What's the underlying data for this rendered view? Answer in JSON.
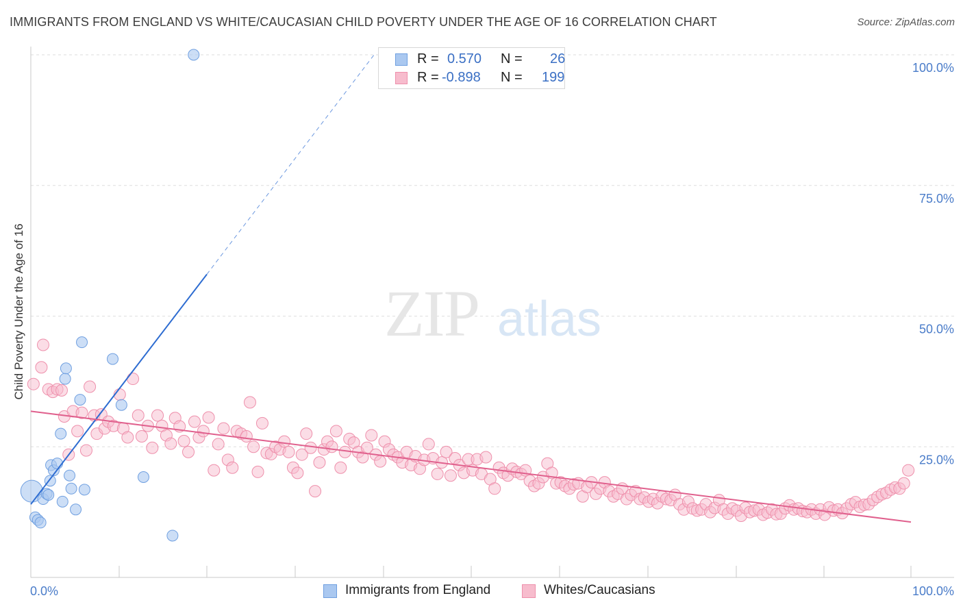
{
  "title": "IMMIGRANTS FROM ENGLAND VS WHITE/CAUCASIAN CHILD POVERTY UNDER THE AGE OF 16 CORRELATION CHART",
  "source": "Source: ZipAtlas.com",
  "watermark": {
    "zip": "ZIP",
    "atlas": "atlas"
  },
  "colors": {
    "blue_fill": "#aac8f0",
    "blue_stroke": "#6f9fe0",
    "blue_line": "#2d6cd1",
    "pink_fill": "#f7bccd",
    "pink_stroke": "#ee8fab",
    "pink_line": "#e0608d",
    "grid": "#dedede",
    "tick_label": "#4a7cc9"
  },
  "legend": {
    "rows": [
      {
        "r_label": "R =",
        "r_value": "0.570",
        "n_label": "N =",
        "n_value": "26"
      },
      {
        "r_label": "R =",
        "r_value": "-0.898",
        "n_label": "N =",
        "n_value": "199"
      }
    ]
  },
  "bottom_legend": [
    "Immigrants from England",
    "Whites/Caucasians"
  ],
  "chart_data": {
    "type": "scatter",
    "title": "IMMIGRANTS FROM ENGLAND VS WHITE/CAUCASIAN CHILD POVERTY UNDER THE AGE OF 16 CORRELATION CHART",
    "xlabel": "",
    "ylabel": "Child Poverty Under the Age of 16",
    "xlim": [
      0,
      100
    ],
    "ylim": [
      0,
      100
    ],
    "x_tick_labels": [
      "0.0%",
      "100.0%"
    ],
    "y_tick_labels": [
      "25.0%",
      "50.0%",
      "75.0%",
      "100.0%"
    ],
    "y_ticks": [
      25,
      50,
      75,
      100
    ],
    "grid": true,
    "legend_position": "top-center",
    "series": [
      {
        "name": "Immigrants from England",
        "R": 0.57,
        "N": 26,
        "trend": {
          "x": [
            0,
            20
          ],
          "y": [
            14.0,
            58.0
          ],
          "dashed_to": [
            39,
            100
          ]
        },
        "points": [
          [
            0.1,
            16.5
          ],
          [
            0.5,
            11.5
          ],
          [
            0.8,
            11.0
          ],
          [
            1.1,
            10.5
          ],
          [
            1.4,
            15.0
          ],
          [
            1.8,
            16.0
          ],
          [
            2.0,
            15.8
          ],
          [
            2.2,
            18.5
          ],
          [
            2.3,
            21.5
          ],
          [
            2.6,
            20.5
          ],
          [
            3.0,
            21.8
          ],
          [
            3.4,
            27.5
          ],
          [
            3.6,
            14.5
          ],
          [
            3.9,
            38.0
          ],
          [
            4.0,
            40.0
          ],
          [
            4.4,
            19.5
          ],
          [
            4.6,
            17.0
          ],
          [
            5.1,
            13.0
          ],
          [
            5.6,
            34.0
          ],
          [
            5.8,
            45.0
          ],
          [
            6.1,
            16.8
          ],
          [
            9.3,
            41.8
          ],
          [
            10.3,
            33.0
          ],
          [
            12.8,
            19.2
          ],
          [
            16.1,
            8.0
          ],
          [
            18.5,
            100.0
          ]
        ]
      },
      {
        "name": "Whites/Caucasians",
        "R": -0.898,
        "N": 199,
        "trend": {
          "x": [
            0,
            100
          ],
          "y": [
            31.8,
            10.6
          ]
        },
        "points": [
          [
            0.3,
            37.0
          ],
          [
            1.2,
            40.2
          ],
          [
            1.4,
            44.5
          ],
          [
            2.0,
            36.0
          ],
          [
            2.5,
            35.5
          ],
          [
            3.0,
            36.0
          ],
          [
            3.5,
            35.8
          ],
          [
            3.8,
            30.8
          ],
          [
            4.3,
            23.5
          ],
          [
            4.8,
            31.8
          ],
          [
            5.3,
            28.0
          ],
          [
            5.8,
            31.5
          ],
          [
            6.3,
            24.3
          ],
          [
            6.7,
            36.5
          ],
          [
            7.2,
            31.0
          ],
          [
            7.5,
            27.5
          ],
          [
            8.0,
            31.2
          ],
          [
            8.4,
            28.5
          ],
          [
            8.8,
            29.8
          ],
          [
            9.4,
            29.0
          ],
          [
            10.1,
            35.0
          ],
          [
            10.5,
            28.5
          ],
          [
            11.0,
            26.8
          ],
          [
            11.6,
            38.0
          ],
          [
            12.2,
            31.0
          ],
          [
            12.6,
            27.0
          ],
          [
            13.3,
            29.0
          ],
          [
            13.8,
            24.8
          ],
          [
            14.4,
            31.0
          ],
          [
            14.9,
            29.0
          ],
          [
            15.4,
            27.2
          ],
          [
            15.9,
            25.6
          ],
          [
            16.4,
            30.5
          ],
          [
            16.9,
            28.9
          ],
          [
            17.4,
            26.1
          ],
          [
            17.9,
            24.0
          ],
          [
            18.6,
            29.8
          ],
          [
            19.1,
            26.8
          ],
          [
            19.6,
            28.0
          ],
          [
            20.2,
            30.6
          ],
          [
            20.8,
            20.5
          ],
          [
            21.3,
            25.5
          ],
          [
            21.9,
            28.5
          ],
          [
            22.4,
            22.5
          ],
          [
            22.9,
            21.0
          ],
          [
            23.4,
            28.0
          ],
          [
            23.9,
            27.5
          ],
          [
            24.5,
            27.0
          ],
          [
            24.9,
            33.5
          ],
          [
            25.3,
            25.0
          ],
          [
            25.8,
            20.2
          ],
          [
            26.3,
            29.5
          ],
          [
            26.8,
            23.8
          ],
          [
            27.3,
            23.6
          ],
          [
            27.8,
            25.0
          ],
          [
            28.3,
            24.5
          ],
          [
            28.8,
            26.0
          ],
          [
            29.3,
            24.0
          ],
          [
            29.8,
            21.0
          ],
          [
            30.3,
            20.0
          ],
          [
            30.8,
            23.5
          ],
          [
            31.3,
            27.5
          ],
          [
            31.8,
            24.8
          ],
          [
            32.3,
            16.5
          ],
          [
            32.8,
            22.0
          ],
          [
            33.3,
            24.5
          ],
          [
            33.7,
            26.0
          ],
          [
            34.2,
            25.0
          ],
          [
            34.7,
            28.0
          ],
          [
            35.2,
            21.0
          ],
          [
            35.7,
            24.0
          ],
          [
            36.2,
            26.5
          ],
          [
            36.7,
            25.8
          ],
          [
            37.2,
            24.0
          ],
          [
            37.7,
            23.0
          ],
          [
            38.2,
            24.8
          ],
          [
            38.7,
            27.2
          ],
          [
            39.2,
            23.5
          ],
          [
            39.7,
            22.2
          ],
          [
            40.2,
            26.0
          ],
          [
            40.7,
            24.5
          ],
          [
            41.2,
            23.5
          ],
          [
            41.7,
            23.0
          ],
          [
            42.2,
            22.0
          ],
          [
            42.7,
            24.0
          ],
          [
            43.2,
            21.5
          ],
          [
            43.7,
            23.2
          ],
          [
            44.2,
            20.8
          ],
          [
            44.7,
            22.5
          ],
          [
            45.2,
            25.5
          ],
          [
            45.7,
            22.8
          ],
          [
            46.2,
            19.8
          ],
          [
            46.7,
            22.0
          ],
          [
            47.2,
            24.0
          ],
          [
            47.7,
            19.5
          ],
          [
            48.2,
            22.8
          ],
          [
            48.7,
            21.5
          ],
          [
            49.2,
            20.0
          ],
          [
            49.7,
            22.6
          ],
          [
            50.2,
            20.5
          ],
          [
            50.7,
            22.6
          ],
          [
            51.2,
            19.8
          ],
          [
            51.7,
            23.0
          ],
          [
            52.2,
            18.8
          ],
          [
            52.7,
            17.0
          ],
          [
            53.2,
            21.0
          ],
          [
            53.7,
            20.0
          ],
          [
            54.2,
            19.5
          ],
          [
            54.7,
            20.8
          ],
          [
            55.2,
            20.2
          ],
          [
            55.7,
            19.8
          ],
          [
            56.2,
            20.5
          ],
          [
            56.7,
            18.5
          ],
          [
            57.2,
            17.5
          ],
          [
            57.7,
            18.0
          ],
          [
            58.2,
            19.2
          ],
          [
            58.7,
            21.8
          ],
          [
            59.2,
            20.0
          ],
          [
            59.7,
            18.0
          ],
          [
            60.2,
            18.2
          ],
          [
            60.7,
            17.5
          ],
          [
            61.2,
            17.0
          ],
          [
            61.7,
            17.8
          ],
          [
            62.2,
            18.0
          ],
          [
            62.7,
            15.5
          ],
          [
            63.2,
            17.3
          ],
          [
            63.7,
            18.2
          ],
          [
            64.2,
            16.0
          ],
          [
            64.7,
            17.0
          ],
          [
            65.2,
            18.2
          ],
          [
            65.7,
            16.5
          ],
          [
            66.2,
            15.5
          ],
          [
            66.7,
            16.0
          ],
          [
            67.2,
            17.0
          ],
          [
            67.7,
            15.0
          ],
          [
            68.2,
            15.8
          ],
          [
            68.7,
            16.5
          ],
          [
            69.2,
            15.0
          ],
          [
            69.7,
            15.3
          ],
          [
            70.2,
            14.5
          ],
          [
            70.7,
            15.0
          ],
          [
            71.2,
            14.2
          ],
          [
            71.7,
            15.5
          ],
          [
            72.2,
            15.0
          ],
          [
            72.7,
            14.8
          ],
          [
            73.2,
            15.8
          ],
          [
            73.7,
            14.0
          ],
          [
            74.2,
            13.0
          ],
          [
            74.7,
            14.5
          ],
          [
            75.2,
            13.2
          ],
          [
            75.7,
            12.8
          ],
          [
            76.2,
            13.0
          ],
          [
            76.7,
            14.0
          ],
          [
            77.2,
            12.5
          ],
          [
            77.7,
            13.3
          ],
          [
            78.2,
            14.8
          ],
          [
            78.7,
            13.0
          ],
          [
            79.2,
            12.2
          ],
          [
            79.7,
            13.2
          ],
          [
            80.2,
            12.8
          ],
          [
            80.7,
            11.8
          ],
          [
            81.2,
            13.3
          ],
          [
            81.7,
            12.5
          ],
          [
            82.2,
            12.8
          ],
          [
            82.7,
            13.0
          ],
          [
            83.2,
            12.0
          ],
          [
            83.7,
            12.4
          ],
          [
            84.2,
            13.0
          ],
          [
            84.7,
            12.1
          ],
          [
            85.2,
            12.2
          ],
          [
            85.7,
            13.2
          ],
          [
            86.2,
            13.8
          ],
          [
            86.7,
            13.0
          ],
          [
            87.2,
            13.2
          ],
          [
            87.7,
            12.7
          ],
          [
            88.2,
            12.5
          ],
          [
            88.7,
            13.0
          ],
          [
            89.2,
            12.2
          ],
          [
            89.7,
            13.0
          ],
          [
            90.2,
            12.0
          ],
          [
            90.7,
            13.4
          ],
          [
            91.2,
            12.8
          ],
          [
            91.7,
            13.0
          ],
          [
            92.2,
            12.3
          ],
          [
            92.7,
            13.2
          ],
          [
            93.2,
            14.0
          ],
          [
            93.7,
            14.4
          ],
          [
            94.2,
            13.5
          ],
          [
            94.7,
            13.9
          ],
          [
            95.2,
            14.0
          ],
          [
            95.7,
            14.8
          ],
          [
            96.2,
            15.4
          ],
          [
            96.7,
            15.9
          ],
          [
            97.2,
            16.2
          ],
          [
            97.7,
            16.8
          ],
          [
            98.2,
            17.2
          ],
          [
            98.7,
            17.0
          ],
          [
            99.2,
            18.0
          ],
          [
            99.7,
            20.5
          ]
        ]
      }
    ]
  }
}
